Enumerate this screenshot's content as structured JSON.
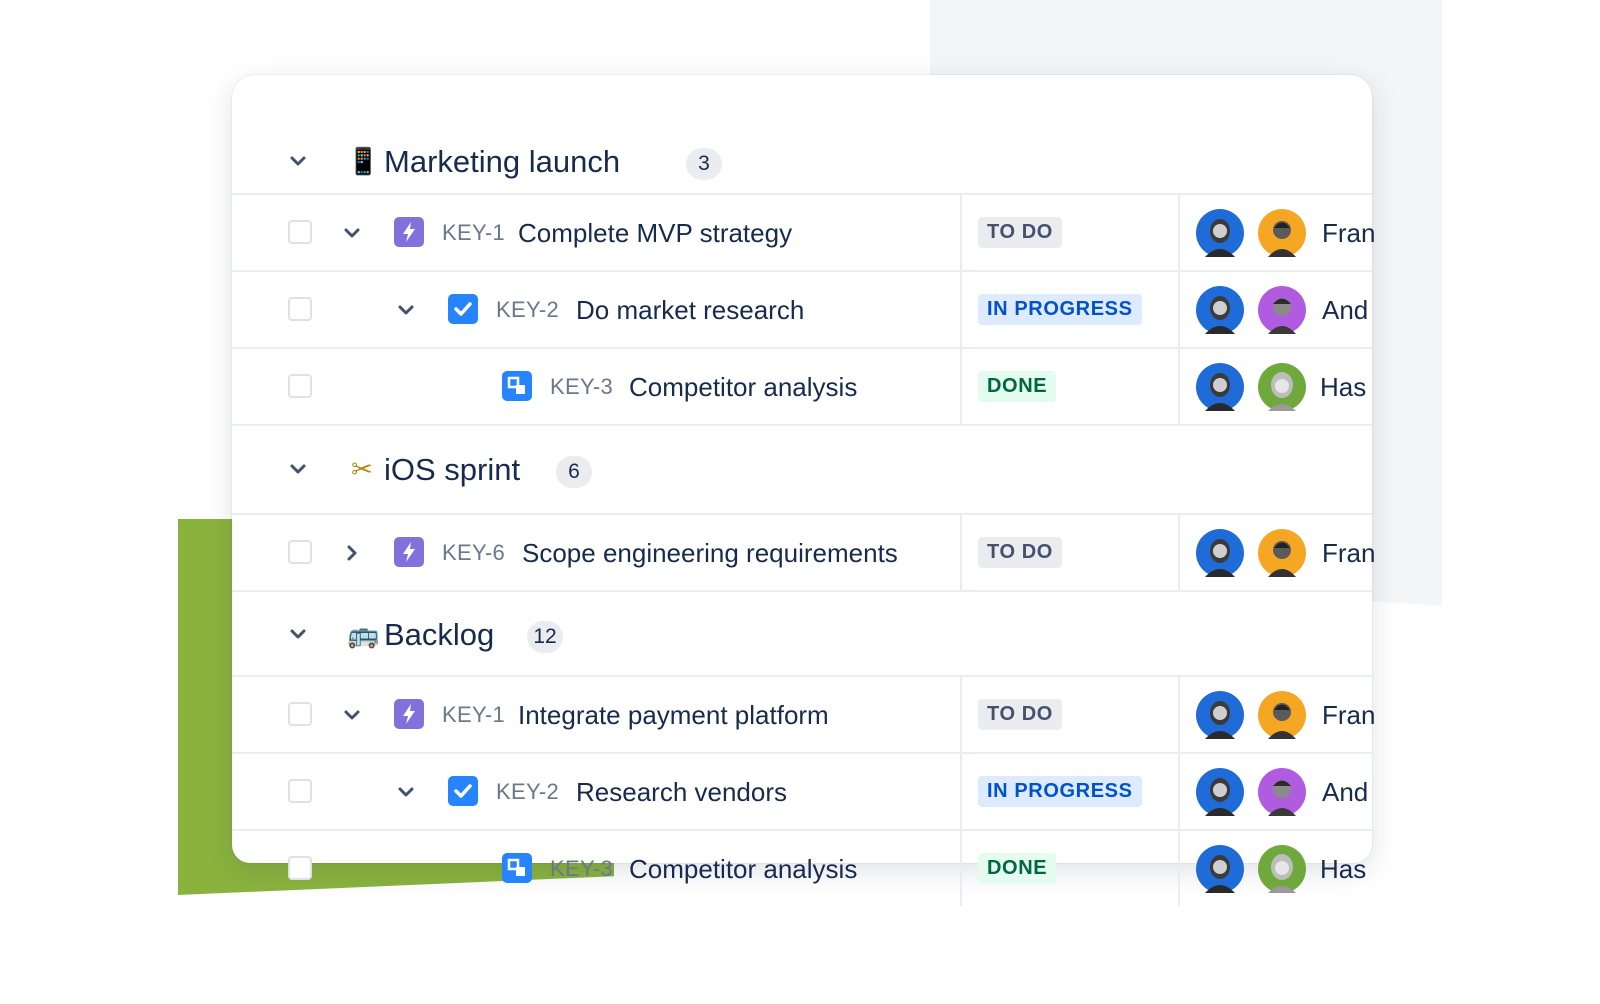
{
  "colors": {
    "accent_green": "#8ab33e",
    "status_todo_bg": "#ebecf0",
    "status_inprogress_bg": "#deebff",
    "status_done_bg": "#e3fcef",
    "story_purple": "#8270db",
    "task_blue": "#2684ff"
  },
  "groups": [
    {
      "emoji": "📱",
      "title": "Marketing launch",
      "count": "3",
      "rows": [
        {
          "key": "KEY-1",
          "summary": "Complete MVP strategy",
          "status": "TO DO",
          "assignee": "Fran",
          "type_icon": "epic-lightning-icon"
        },
        {
          "key": "KEY-2",
          "summary": "Do market research",
          "status": "IN PROGRESS",
          "assignee": "And",
          "type_icon": "task-check-icon"
        },
        {
          "key": "KEY-3",
          "summary": "Competitor analysis",
          "status": "DONE",
          "assignee": "Has",
          "type_icon": "subtask-icon"
        }
      ]
    },
    {
      "emoji": "✂",
      "title": "iOS sprint",
      "count": "6",
      "rows": [
        {
          "key": "KEY-6",
          "summary": "Scope engineering requirements",
          "status": "TO DO",
          "assignee": "Fran",
          "type_icon": "epic-lightning-icon"
        }
      ]
    },
    {
      "emoji": "🚌",
      "title": "Backlog",
      "count": "12",
      "rows": [
        {
          "key": "KEY-1",
          "summary": "Integrate payment platform",
          "status": "TO DO",
          "assignee": "Fran",
          "type_icon": "epic-lightning-icon"
        },
        {
          "key": "KEY-2",
          "summary": "Research vendors",
          "status": "IN PROGRESS",
          "assignee": "And",
          "type_icon": "task-check-icon"
        },
        {
          "key": "KEY-3",
          "summary": "Competitor analysis",
          "status": "DONE",
          "assignee": "Has",
          "type_icon": "subtask-icon"
        }
      ]
    }
  ]
}
